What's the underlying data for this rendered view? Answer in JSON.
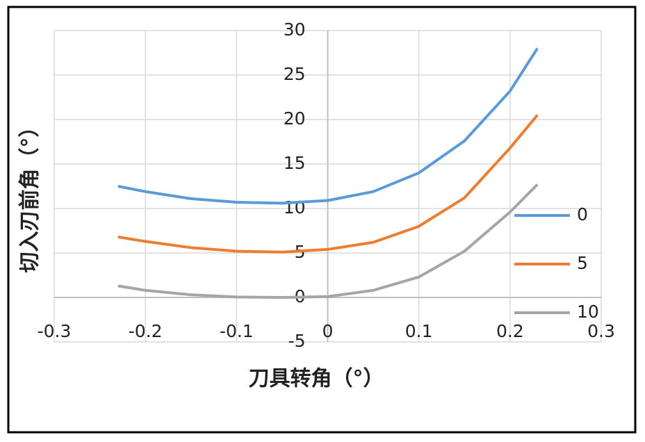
{
  "chart_data": {
    "type": "line",
    "x_label": "刀具转角（°）",
    "y_label": "切入刃前角（°）",
    "x": [
      -0.23,
      -0.2,
      -0.15,
      -0.1,
      -0.05,
      0,
      0.05,
      0.1,
      0.15,
      0.2,
      0.23
    ],
    "series": [
      {
        "name": "0",
        "color": "#5b9bd5",
        "values": [
          12.5,
          11.9,
          11.1,
          10.7,
          10.6,
          10.9,
          11.9,
          14.0,
          17.6,
          23.2,
          28.0
        ]
      },
      {
        "name": "5",
        "color": "#ed7d31",
        "values": [
          6.8,
          6.3,
          5.6,
          5.2,
          5.1,
          5.4,
          6.2,
          8.0,
          11.2,
          16.8,
          20.5
        ]
      },
      {
        "name": "10",
        "color": "#a5a5a5",
        "values": [
          1.3,
          0.8,
          0.3,
          0.05,
          0.0,
          0.1,
          0.8,
          2.3,
          5.2,
          9.6,
          12.7
        ]
      }
    ],
    "xlim": [
      -0.3,
      0.3
    ],
    "xticks": [
      -0.3,
      -0.2,
      -0.1,
      0,
      0.1,
      0.2,
      0.3
    ],
    "ylim": [
      -5,
      30
    ],
    "yticks": [
      -5,
      0,
      5,
      10,
      15,
      20,
      25,
      30
    ],
    "grid": true,
    "legend": "right"
  }
}
